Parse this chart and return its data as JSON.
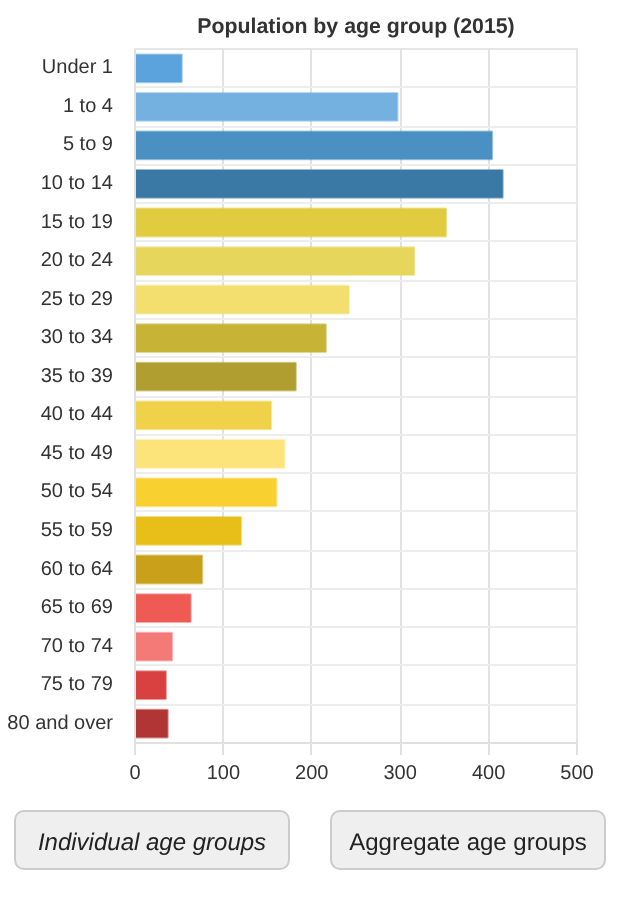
{
  "chart_data": {
    "type": "bar",
    "orientation": "horizontal",
    "title": "Population by age group (2015)",
    "categories": [
      "Under 1",
      "1 to 4",
      "5 to 9",
      "10 to 14",
      "15 to 19",
      "20 to 24",
      "25 to 29",
      "30 to 34",
      "35 to 39",
      "40 to 44",
      "45 to 49",
      "50 to 54",
      "55 to 59",
      "60 to 64",
      "65 to 69",
      "70 to 74",
      "75 to 79",
      "80 and over"
    ],
    "values": [
      53,
      297,
      404,
      416,
      352,
      316,
      242,
      216,
      182,
      154,
      169,
      160,
      120,
      76,
      63,
      42,
      35,
      37
    ],
    "colors": [
      "#5ba3dc",
      "#74b1e0",
      "#4a90c2",
      "#3a79a6",
      "#e0cc3e",
      "#e6d75c",
      "#f2df6e",
      "#c7b336",
      "#b09f30",
      "#f0d24a",
      "#fde47a",
      "#f8d030",
      "#e8be18",
      "#c9a01a",
      "#f05a55",
      "#f47a78",
      "#d94040",
      "#b03535"
    ],
    "xlim": [
      0,
      500
    ],
    "xticks": [
      0,
      100,
      200,
      300,
      400,
      500
    ],
    "grid": true,
    "annotations": [
      "Individual age groups",
      "Aggregate age groups"
    ]
  }
}
